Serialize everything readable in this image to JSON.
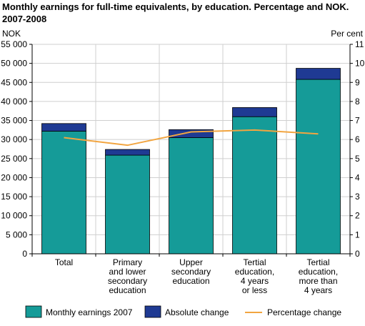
{
  "chart_data": {
    "type": "bar",
    "title_lines": [
      "Monthly earnings for full-time equivalents, by education. Percentage and NOK.",
      "2007-2008"
    ],
    "left_axis_label": "NOK",
    "right_axis_label": "Per cent",
    "left_ylim": [
      0,
      55000
    ],
    "right_ylim": [
      0,
      11
    ],
    "left_ticks": [
      "0",
      "5 000",
      "10 000",
      "15 000",
      "20 000",
      "25 000",
      "30 000",
      "35 000",
      "40 000",
      "45 000",
      "50 000",
      "55 000"
    ],
    "right_ticks": [
      "0",
      "1",
      "2",
      "3",
      "4",
      "5",
      "6",
      "7",
      "8",
      "9",
      "10",
      "11"
    ],
    "categories": [
      [
        "Total"
      ],
      [
        "Primary",
        "and lower",
        "secondary",
        "education"
      ],
      [
        "Upper",
        "secondary",
        "education"
      ],
      [
        "Tertial",
        "education,",
        "4 years",
        "or less"
      ],
      [
        "Tertial",
        "education,",
        "more than",
        "4 years"
      ]
    ],
    "series": [
      {
        "name": "Monthly earnings 2007",
        "kind": "bar",
        "color": "#159b98",
        "values": [
          32200,
          25900,
          30500,
          36000,
          45800
        ]
      },
      {
        "name": "Absolute change",
        "kind": "bar-stacked",
        "color": "#1f3a93",
        "values": [
          2000,
          1500,
          2100,
          2400,
          2900
        ]
      },
      {
        "name": "Percentage change",
        "kind": "line",
        "axis": "right",
        "color": "#f2a540",
        "values": [
          6.1,
          5.7,
          6.4,
          6.5,
          6.3
        ]
      }
    ],
    "grid": true,
    "legend_position": "bottom"
  }
}
